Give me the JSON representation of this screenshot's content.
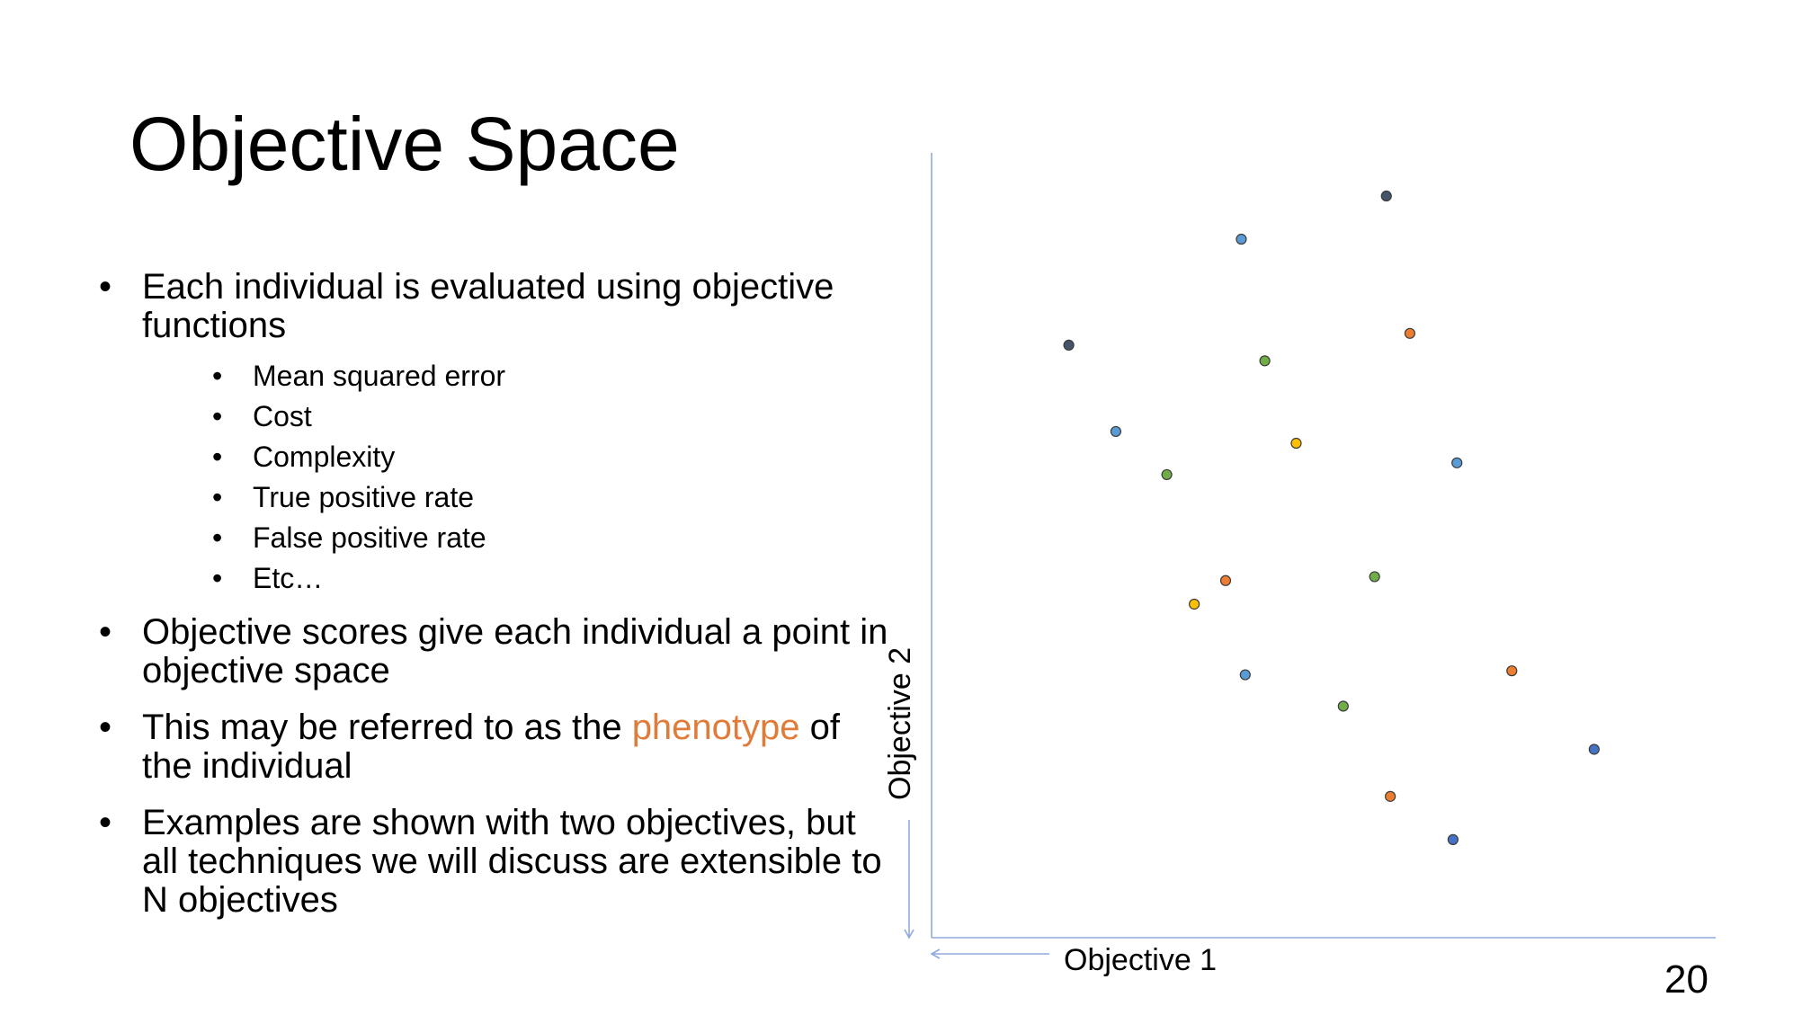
{
  "slide": {
    "title": "Objective Space",
    "page_number": "20"
  },
  "bullets": [
    {
      "text": "Each individual is evaluated using objective functions"
    },
    {
      "text_before": "Objective scores give each individual a point in objective space"
    },
    {
      "text_before": "This may be referred to as the ",
      "highlight": "phenotype",
      "text_after": " of the individual"
    },
    {
      "text": "Examples are shown with two objectives, but all techniques we will discuss are extensible to N objectives"
    }
  ],
  "sub_bullets": [
    "Mean squared error",
    "Cost",
    "Complexity",
    "True positive rate",
    "False positive rate",
    "Etc…"
  ],
  "colors": {
    "accent": "#E07B39",
    "axis": "#8FAADC",
    "point_dark": "#44546A",
    "point_blue": "#5B9BD5",
    "point_darkblue": "#4472C4",
    "point_orange": "#ED7D31",
    "point_green": "#70AD47",
    "point_yellow": "#FFC000"
  },
  "chart_data": {
    "type": "scatter",
    "xlabel": "Objective 1",
    "ylabel": "Objective 2",
    "xlim": [
      0,
      100
    ],
    "ylim": [
      0,
      100
    ],
    "grid": false,
    "series": [
      {
        "color": "point_dark",
        "x": [
          58,
          17.5
        ],
        "y": [
          94.5,
          75.5
        ]
      },
      {
        "color": "point_blue",
        "x": [
          39.5,
          23.5,
          67,
          40
        ],
        "y": [
          89,
          64.5,
          60.5,
          33.5
        ]
      },
      {
        "color": "point_darkblue",
        "x": [
          84.5,
          66.5
        ],
        "y": [
          24,
          12.5
        ]
      },
      {
        "color": "point_orange",
        "x": [
          61,
          37.5,
          74,
          58.5
        ],
        "y": [
          77,
          45.5,
          34,
          18
        ]
      },
      {
        "color": "point_green",
        "x": [
          42.5,
          30,
          56.5,
          52.5
        ],
        "y": [
          73.5,
          59,
          46,
          29.5
        ]
      },
      {
        "color": "point_yellow",
        "x": [
          46.5,
          33.5
        ],
        "y": [
          63,
          42.5
        ]
      }
    ]
  }
}
